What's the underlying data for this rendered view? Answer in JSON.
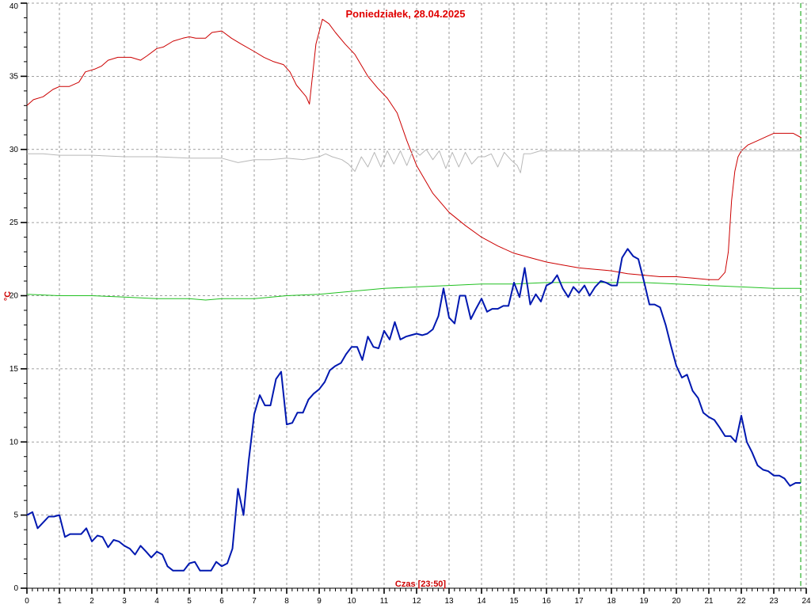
{
  "chart_data": {
    "type": "line",
    "title": "Poniedziałek, 28.04.2025",
    "xlabel": "Czas [23:50]",
    "ylabel": "°C",
    "xlim": [
      0,
      24
    ],
    "ylim": [
      0,
      40
    ],
    "x_ticks": [
      "0",
      "1",
      "2",
      "3",
      "4",
      "5",
      "6",
      "7",
      "8",
      "9",
      "10",
      "11",
      "12",
      "13",
      "14",
      "15",
      "16",
      "17",
      "18",
      "19",
      "20",
      "21",
      "22",
      "23",
      "24"
    ],
    "y_ticks": [
      "0",
      "5",
      "10",
      "15",
      "20",
      "25",
      "30",
      "35",
      "40"
    ],
    "grid": true,
    "current_time": 23.83,
    "colors": {
      "title": "#e00000",
      "axis_label": "#cc0000",
      "grid": "#808080",
      "current_time_marker": "#00a000"
    },
    "series": [
      {
        "color": "#cc0000",
        "width": 1,
        "points": [
          [
            0,
            33.0
          ],
          [
            0.2,
            33.4
          ],
          [
            0.5,
            33.6
          ],
          [
            0.8,
            34.1
          ],
          [
            1.0,
            34.3
          ],
          [
            1.3,
            34.3
          ],
          [
            1.6,
            34.6
          ],
          [
            1.8,
            35.3
          ],
          [
            2.1,
            35.5
          ],
          [
            2.3,
            35.7
          ],
          [
            2.5,
            36.1
          ],
          [
            2.8,
            36.3
          ],
          [
            3.2,
            36.3
          ],
          [
            3.5,
            36.1
          ],
          [
            3.7,
            36.4
          ],
          [
            4.0,
            36.9
          ],
          [
            4.2,
            37.0
          ],
          [
            4.5,
            37.4
          ],
          [
            4.8,
            37.6
          ],
          [
            5.0,
            37.7
          ],
          [
            5.2,
            37.6
          ],
          [
            5.5,
            37.6
          ],
          [
            5.7,
            38.0
          ],
          [
            6.0,
            38.1
          ],
          [
            6.3,
            37.6
          ],
          [
            6.6,
            37.2
          ],
          [
            7.0,
            36.7
          ],
          [
            7.3,
            36.3
          ],
          [
            7.6,
            36.0
          ],
          [
            7.9,
            35.8
          ],
          [
            8.1,
            35.3
          ],
          [
            8.3,
            34.4
          ],
          [
            8.6,
            33.6
          ],
          [
            8.7,
            33.1
          ],
          [
            8.9,
            37.2
          ],
          [
            9.1,
            38.9
          ],
          [
            9.3,
            38.6
          ],
          [
            9.5,
            38.0
          ],
          [
            9.8,
            37.2
          ],
          [
            10.1,
            36.5
          ],
          [
            10.5,
            35.0
          ],
          [
            10.8,
            34.2
          ],
          [
            11.1,
            33.5
          ],
          [
            11.4,
            32.5
          ],
          [
            11.7,
            30.6
          ],
          [
            12.0,
            28.9
          ],
          [
            12.5,
            27.0
          ],
          [
            13.0,
            25.7
          ],
          [
            13.5,
            24.8
          ],
          [
            14.0,
            24.0
          ],
          [
            14.5,
            23.4
          ],
          [
            15.0,
            22.9
          ],
          [
            15.5,
            22.6
          ],
          [
            16.0,
            22.3
          ],
          [
            16.5,
            22.1
          ],
          [
            17.0,
            21.9
          ],
          [
            17.5,
            21.8
          ],
          [
            18.0,
            21.7
          ],
          [
            18.5,
            21.5
          ],
          [
            19.0,
            21.4
          ],
          [
            19.5,
            21.3
          ],
          [
            20.0,
            21.3
          ],
          [
            20.5,
            21.2
          ],
          [
            21.0,
            21.1
          ],
          [
            21.3,
            21.1
          ],
          [
            21.5,
            21.6
          ],
          [
            21.6,
            23.0
          ],
          [
            21.7,
            26.5
          ],
          [
            21.8,
            28.5
          ],
          [
            21.9,
            29.5
          ],
          [
            22.0,
            29.9
          ],
          [
            22.2,
            30.3
          ],
          [
            22.5,
            30.6
          ],
          [
            22.8,
            30.9
          ],
          [
            23.0,
            31.1
          ],
          [
            23.3,
            31.1
          ],
          [
            23.6,
            31.1
          ],
          [
            23.85,
            30.8
          ]
        ]
      },
      {
        "color": "#b8b8b8",
        "width": 1,
        "points": [
          [
            0,
            29.7
          ],
          [
            0.5,
            29.7
          ],
          [
            1,
            29.6
          ],
          [
            2,
            29.6
          ],
          [
            3,
            29.5
          ],
          [
            4,
            29.5
          ],
          [
            5,
            29.4
          ],
          [
            6,
            29.4
          ],
          [
            6.5,
            29.1
          ],
          [
            7,
            29.3
          ],
          [
            7.5,
            29.3
          ],
          [
            8,
            29.4
          ],
          [
            8.5,
            29.3
          ],
          [
            9,
            29.5
          ],
          [
            9.2,
            29.7
          ],
          [
            9.4,
            29.5
          ],
          [
            9.7,
            29.3
          ],
          [
            9.9,
            29.0
          ],
          [
            10.1,
            28.5
          ],
          [
            10.3,
            29.5
          ],
          [
            10.5,
            28.8
          ],
          [
            10.7,
            29.8
          ],
          [
            10.9,
            28.8
          ],
          [
            11.1,
            29.9
          ],
          [
            11.3,
            29.0
          ],
          [
            11.5,
            29.9
          ],
          [
            11.7,
            28.9
          ],
          [
            11.9,
            30.0
          ],
          [
            12.1,
            29.6
          ],
          [
            12.3,
            30.0
          ],
          [
            12.5,
            29.3
          ],
          [
            12.7,
            29.9
          ],
          [
            12.9,
            28.7
          ],
          [
            13.1,
            29.8
          ],
          [
            13.3,
            28.8
          ],
          [
            13.5,
            29.8
          ],
          [
            13.7,
            29.0
          ],
          [
            13.9,
            29.5
          ],
          [
            14.1,
            29.5
          ],
          [
            14.3,
            29.7
          ],
          [
            14.5,
            28.8
          ],
          [
            14.7,
            29.8
          ],
          [
            14.9,
            29.3
          ],
          [
            15.1,
            28.9
          ],
          [
            15.2,
            28.4
          ],
          [
            15.3,
            29.7
          ],
          [
            15.5,
            29.7
          ],
          [
            15.8,
            29.9
          ],
          [
            16,
            29.9
          ],
          [
            16.5,
            29.9
          ],
          [
            17,
            29.9
          ],
          [
            18,
            29.9
          ],
          [
            19,
            29.9
          ],
          [
            20,
            29.9
          ],
          [
            21,
            29.9
          ],
          [
            22,
            29.9
          ],
          [
            23,
            29.9
          ],
          [
            23.85,
            29.9
          ]
        ]
      },
      {
        "color": "#20c020",
        "width": 1,
        "points": [
          [
            0,
            20.1
          ],
          [
            1,
            20.0
          ],
          [
            2,
            20.0
          ],
          [
            3,
            19.9
          ],
          [
            4,
            19.8
          ],
          [
            5,
            19.8
          ],
          [
            5.5,
            19.7
          ],
          [
            6,
            19.8
          ],
          [
            7,
            19.8
          ],
          [
            8,
            20.0
          ],
          [
            9,
            20.1
          ],
          [
            10,
            20.3
          ],
          [
            11,
            20.5
          ],
          [
            12,
            20.6
          ],
          [
            13,
            20.7
          ],
          [
            14,
            20.8
          ],
          [
            15,
            20.8
          ],
          [
            16,
            20.9
          ],
          [
            17,
            20.9
          ],
          [
            18,
            20.9
          ],
          [
            19,
            20.9
          ],
          [
            20,
            20.8
          ],
          [
            21,
            20.7
          ],
          [
            22,
            20.6
          ],
          [
            23,
            20.5
          ],
          [
            23.85,
            20.5
          ]
        ]
      },
      {
        "color": "#0018b0",
        "width": 2,
        "points": [
          [
            0,
            5.0
          ],
          [
            0.17,
            5.2
          ],
          [
            0.33,
            4.1
          ],
          [
            0.5,
            4.5
          ],
          [
            0.67,
            4.9
          ],
          [
            0.83,
            4.9
          ],
          [
            1.0,
            5.0
          ],
          [
            1.17,
            3.5
          ],
          [
            1.33,
            3.7
          ],
          [
            1.5,
            3.7
          ],
          [
            1.67,
            3.7
          ],
          [
            1.83,
            4.1
          ],
          [
            2.0,
            3.2
          ],
          [
            2.17,
            3.6
          ],
          [
            2.33,
            3.5
          ],
          [
            2.5,
            2.8
          ],
          [
            2.67,
            3.3
          ],
          [
            2.83,
            3.2
          ],
          [
            3.0,
            2.9
          ],
          [
            3.17,
            2.7
          ],
          [
            3.33,
            2.3
          ],
          [
            3.5,
            2.9
          ],
          [
            3.67,
            2.5
          ],
          [
            3.83,
            2.1
          ],
          [
            4.0,
            2.5
          ],
          [
            4.17,
            2.3
          ],
          [
            4.33,
            1.5
          ],
          [
            4.5,
            1.2
          ],
          [
            4.67,
            1.2
          ],
          [
            4.83,
            1.2
          ],
          [
            5.0,
            1.7
          ],
          [
            5.17,
            1.8
          ],
          [
            5.33,
            1.2
          ],
          [
            5.5,
            1.2
          ],
          [
            5.67,
            1.2
          ],
          [
            5.83,
            1.8
          ],
          [
            6.0,
            1.5
          ],
          [
            6.17,
            1.7
          ],
          [
            6.33,
            2.7
          ],
          [
            6.5,
            6.8
          ],
          [
            6.67,
            5.0
          ],
          [
            6.83,
            8.7
          ],
          [
            7.0,
            11.9
          ],
          [
            7.17,
            13.2
          ],
          [
            7.33,
            12.5
          ],
          [
            7.5,
            12.5
          ],
          [
            7.67,
            14.3
          ],
          [
            7.83,
            14.8
          ],
          [
            8.0,
            11.2
          ],
          [
            8.17,
            11.3
          ],
          [
            8.33,
            12.0
          ],
          [
            8.5,
            12.0
          ],
          [
            8.67,
            12.9
          ],
          [
            8.83,
            13.3
          ],
          [
            9.0,
            13.6
          ],
          [
            9.17,
            14.1
          ],
          [
            9.33,
            14.9
          ],
          [
            9.5,
            15.2
          ],
          [
            9.67,
            15.4
          ],
          [
            9.83,
            16.0
          ],
          [
            10.0,
            16.5
          ],
          [
            10.17,
            16.5
          ],
          [
            10.33,
            15.6
          ],
          [
            10.5,
            17.2
          ],
          [
            10.67,
            16.5
          ],
          [
            10.83,
            16.4
          ],
          [
            11.0,
            17.6
          ],
          [
            11.17,
            17.0
          ],
          [
            11.33,
            18.2
          ],
          [
            11.5,
            17.0
          ],
          [
            11.67,
            17.2
          ],
          [
            11.83,
            17.3
          ],
          [
            12.0,
            17.4
          ],
          [
            12.17,
            17.3
          ],
          [
            12.33,
            17.4
          ],
          [
            12.5,
            17.7
          ],
          [
            12.67,
            18.6
          ],
          [
            12.83,
            20.5
          ],
          [
            13.0,
            18.5
          ],
          [
            13.17,
            18.1
          ],
          [
            13.33,
            20.0
          ],
          [
            13.5,
            20.0
          ],
          [
            13.67,
            18.4
          ],
          [
            13.83,
            19.1
          ],
          [
            14.0,
            19.8
          ],
          [
            14.17,
            18.9
          ],
          [
            14.33,
            19.1
          ],
          [
            14.5,
            19.1
          ],
          [
            14.67,
            19.3
          ],
          [
            14.83,
            19.3
          ],
          [
            15.0,
            20.9
          ],
          [
            15.17,
            19.9
          ],
          [
            15.33,
            21.9
          ],
          [
            15.5,
            19.4
          ],
          [
            15.67,
            20.1
          ],
          [
            15.83,
            19.6
          ],
          [
            16.0,
            20.7
          ],
          [
            16.17,
            20.9
          ],
          [
            16.33,
            21.4
          ],
          [
            16.5,
            20.5
          ],
          [
            16.67,
            19.9
          ],
          [
            16.83,
            20.6
          ],
          [
            17.0,
            20.2
          ],
          [
            17.17,
            20.7
          ],
          [
            17.33,
            20.0
          ],
          [
            17.5,
            20.6
          ],
          [
            17.67,
            21.0
          ],
          [
            17.83,
            20.9
          ],
          [
            18.0,
            20.7
          ],
          [
            18.17,
            20.7
          ],
          [
            18.33,
            22.6
          ],
          [
            18.5,
            23.2
          ],
          [
            18.67,
            22.7
          ],
          [
            18.83,
            22.5
          ],
          [
            19.0,
            21.0
          ],
          [
            19.17,
            19.4
          ],
          [
            19.33,
            19.4
          ],
          [
            19.5,
            19.2
          ],
          [
            19.67,
            18.0
          ],
          [
            19.83,
            16.6
          ],
          [
            20.0,
            15.2
          ],
          [
            20.17,
            14.4
          ],
          [
            20.33,
            14.6
          ],
          [
            20.5,
            13.5
          ],
          [
            20.67,
            13.0
          ],
          [
            20.83,
            12.0
          ],
          [
            21.0,
            11.7
          ],
          [
            21.17,
            11.5
          ],
          [
            21.33,
            11.0
          ],
          [
            21.5,
            10.4
          ],
          [
            21.67,
            10.4
          ],
          [
            21.83,
            10.0
          ],
          [
            22.0,
            11.8
          ],
          [
            22.17,
            10.0
          ],
          [
            22.33,
            9.3
          ],
          [
            22.5,
            8.4
          ],
          [
            22.67,
            8.1
          ],
          [
            22.83,
            8.0
          ],
          [
            23.0,
            7.7
          ],
          [
            23.17,
            7.7
          ],
          [
            23.33,
            7.5
          ],
          [
            23.5,
            7.0
          ],
          [
            23.67,
            7.2
          ],
          [
            23.83,
            7.2
          ]
        ]
      }
    ]
  }
}
